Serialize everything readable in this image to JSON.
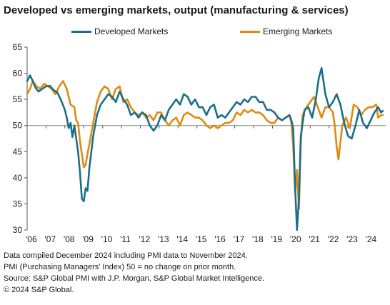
{
  "title": "Developed vs emerging markets, output (manufacturing & services)",
  "notes": [
    "Data compiled December 2024 including PMI data to November 2024.",
    "PMI (Purchasing Managers' Index) 50 = no change on prior month.",
    "Source: S&P Global PMI with J.P. Morgan, S&P Global Market Intelligence.",
    "© 2024 S&P Global."
  ],
  "colors": {
    "developed": "#1a6f8a",
    "emerging": "#e08a12",
    "axis": "#555555",
    "reference": "#808080"
  },
  "chart_data": {
    "type": "line",
    "title": "Developed vs emerging markets, output (manufacturing & services)",
    "xlabel": "",
    "ylabel": "",
    "ylim": [
      30,
      65
    ],
    "xlim": [
      2006,
      2025
    ],
    "yticks": [
      30,
      35,
      40,
      45,
      50,
      55,
      60,
      65
    ],
    "xticks": [
      "'06",
      "'07",
      "'08",
      "'09",
      "'10",
      "'11",
      "'12",
      "'13",
      "'14",
      "'15",
      "'16",
      "'17",
      "'18",
      "'19",
      "'20",
      "'21",
      "'22",
      "'23",
      "'24"
    ],
    "reference_line": 50,
    "grid": false,
    "legend_position": "top",
    "series": [
      {
        "name": "Developed Markets",
        "color": "#1a6f8a",
        "x": [
          2006.0,
          2006.15,
          2006.3,
          2006.45,
          2006.6,
          2006.8,
          2007.0,
          2007.2,
          2007.4,
          2007.6,
          2007.8,
          2008.0,
          2008.1,
          2008.2,
          2008.3,
          2008.4,
          2008.5,
          2008.6,
          2008.7,
          2008.8,
          2008.9,
          2009.0,
          2009.1,
          2009.2,
          2009.3,
          2009.5,
          2009.7,
          2009.9,
          2010.1,
          2010.3,
          2010.5,
          2010.7,
          2010.9,
          2011.1,
          2011.3,
          2011.5,
          2011.7,
          2011.9,
          2012.1,
          2012.3,
          2012.5,
          2012.7,
          2012.9,
          2013.1,
          2013.3,
          2013.5,
          2013.7,
          2013.9,
          2014.1,
          2014.3,
          2014.5,
          2014.7,
          2014.9,
          2015.1,
          2015.3,
          2015.5,
          2015.7,
          2015.9,
          2016.1,
          2016.3,
          2016.5,
          2016.7,
          2016.9,
          2017.1,
          2017.3,
          2017.5,
          2017.7,
          2017.9,
          2018.1,
          2018.3,
          2018.5,
          2018.7,
          2018.9,
          2019.1,
          2019.3,
          2019.5,
          2019.7,
          2019.9,
          2020.0,
          2020.1,
          2020.2,
          2020.3,
          2020.4,
          2020.5,
          2020.6,
          2020.7,
          2020.9,
          2021.1,
          2021.3,
          2021.45,
          2021.6,
          2021.8,
          2022.0,
          2022.2,
          2022.4,
          2022.6,
          2022.8,
          2023.0,
          2023.2,
          2023.4,
          2023.6,
          2023.8,
          2024.0,
          2024.2,
          2024.4,
          2024.6,
          2024.75,
          2024.85
        ],
        "values": [
          58.5,
          59.6,
          58.5,
          57.2,
          56.5,
          57.0,
          57.5,
          57.6,
          56.8,
          56.3,
          54.8,
          53.0,
          51.5,
          49.5,
          50.5,
          47.8,
          50.0,
          47.5,
          45.0,
          41.0,
          36.0,
          35.5,
          38.0,
          37.5,
          42.0,
          48.0,
          52.0,
          54.0,
          55.0,
          56.0,
          55.5,
          54.5,
          56.5,
          55.0,
          54.0,
          52.0,
          52.5,
          51.5,
          52.5,
          52.0,
          50.0,
          49.0,
          50.0,
          52.0,
          51.0,
          53.0,
          54.0,
          55.0,
          54.0,
          56.0,
          55.5,
          54.0,
          55.0,
          53.5,
          53.5,
          52.0,
          53.5,
          54.0,
          51.5,
          52.0,
          51.5,
          52.5,
          53.5,
          54.5,
          54.0,
          55.0,
          54.5,
          55.5,
          55.5,
          54.5,
          54.5,
          53.0,
          53.0,
          52.5,
          51.5,
          51.0,
          51.5,
          52.0,
          51.0,
          49.5,
          38.0,
          30.0,
          36.0,
          48.0,
          50.5,
          53.0,
          53.5,
          51.5,
          55.0,
          59.0,
          61.0,
          56.0,
          53.5,
          54.5,
          56.0,
          54.0,
          50.5,
          48.0,
          47.5,
          50.0,
          53.0,
          50.5,
          49.5,
          51.0,
          52.5,
          53.5,
          52.5,
          52.8
        ]
      },
      {
        "name": "Emerging Markets",
        "color": "#e08a12",
        "x": [
          2006.0,
          2006.15,
          2006.3,
          2006.5,
          2006.7,
          2006.9,
          2007.1,
          2007.3,
          2007.5,
          2007.7,
          2007.9,
          2008.1,
          2008.3,
          2008.5,
          2008.6,
          2008.7,
          2008.8,
          2008.9,
          2009.0,
          2009.1,
          2009.2,
          2009.3,
          2009.5,
          2009.7,
          2009.9,
          2010.1,
          2010.3,
          2010.5,
          2010.7,
          2010.9,
          2011.1,
          2011.3,
          2011.5,
          2011.7,
          2011.9,
          2012.1,
          2012.3,
          2012.5,
          2012.7,
          2012.9,
          2013.1,
          2013.3,
          2013.5,
          2013.7,
          2013.9,
          2014.1,
          2014.3,
          2014.5,
          2014.7,
          2014.9,
          2015.1,
          2015.3,
          2015.5,
          2015.7,
          2015.9,
          2016.1,
          2016.3,
          2016.5,
          2016.7,
          2016.9,
          2017.1,
          2017.3,
          2017.5,
          2017.7,
          2017.9,
          2018.1,
          2018.3,
          2018.5,
          2018.7,
          2018.9,
          2019.1,
          2019.3,
          2019.5,
          2019.7,
          2019.9,
          2020.0,
          2020.1,
          2020.2,
          2020.3,
          2020.4,
          2020.5,
          2020.6,
          2020.8,
          2021.0,
          2021.2,
          2021.4,
          2021.6,
          2021.8,
          2022.0,
          2022.2,
          2022.3,
          2022.4,
          2022.5,
          2022.7,
          2022.9,
          2023.1,
          2023.3,
          2023.5,
          2023.7,
          2023.9,
          2024.1,
          2024.3,
          2024.5,
          2024.6,
          2024.75,
          2024.85
        ],
        "values": [
          56.0,
          57.0,
          58.5,
          57.5,
          57.0,
          58.0,
          57.5,
          57.0,
          56.0,
          57.5,
          58.5,
          57.0,
          54.0,
          53.5,
          51.0,
          50.5,
          47.0,
          44.5,
          42.0,
          42.5,
          44.5,
          46.5,
          50.5,
          54.5,
          56.5,
          57.5,
          57.0,
          55.0,
          57.0,
          57.5,
          54.5,
          55.0,
          53.5,
          52.5,
          52.0,
          52.5,
          51.5,
          52.0,
          51.0,
          52.5,
          52.5,
          51.0,
          50.0,
          51.0,
          51.5,
          50.0,
          52.0,
          52.5,
          52.0,
          51.5,
          51.5,
          51.0,
          50.0,
          49.5,
          50.0,
          49.5,
          50.0,
          50.5,
          50.5,
          51.0,
          52.5,
          52.0,
          53.0,
          52.5,
          53.0,
          52.5,
          52.5,
          52.0,
          51.0,
          50.5,
          50.5,
          51.5,
          51.0,
          51.5,
          52.0,
          50.5,
          46.0,
          37.0,
          41.5,
          34.0,
          46.5,
          52.0,
          53.5,
          54.5,
          55.5,
          53.5,
          51.5,
          53.5,
          53.5,
          52.5,
          50.0,
          46.0,
          43.5,
          50.0,
          51.5,
          49.5,
          54.0,
          53.5,
          52.0,
          53.0,
          53.5,
          53.5,
          54.0,
          51.5,
          52.0,
          52.0
        ]
      }
    ]
  }
}
